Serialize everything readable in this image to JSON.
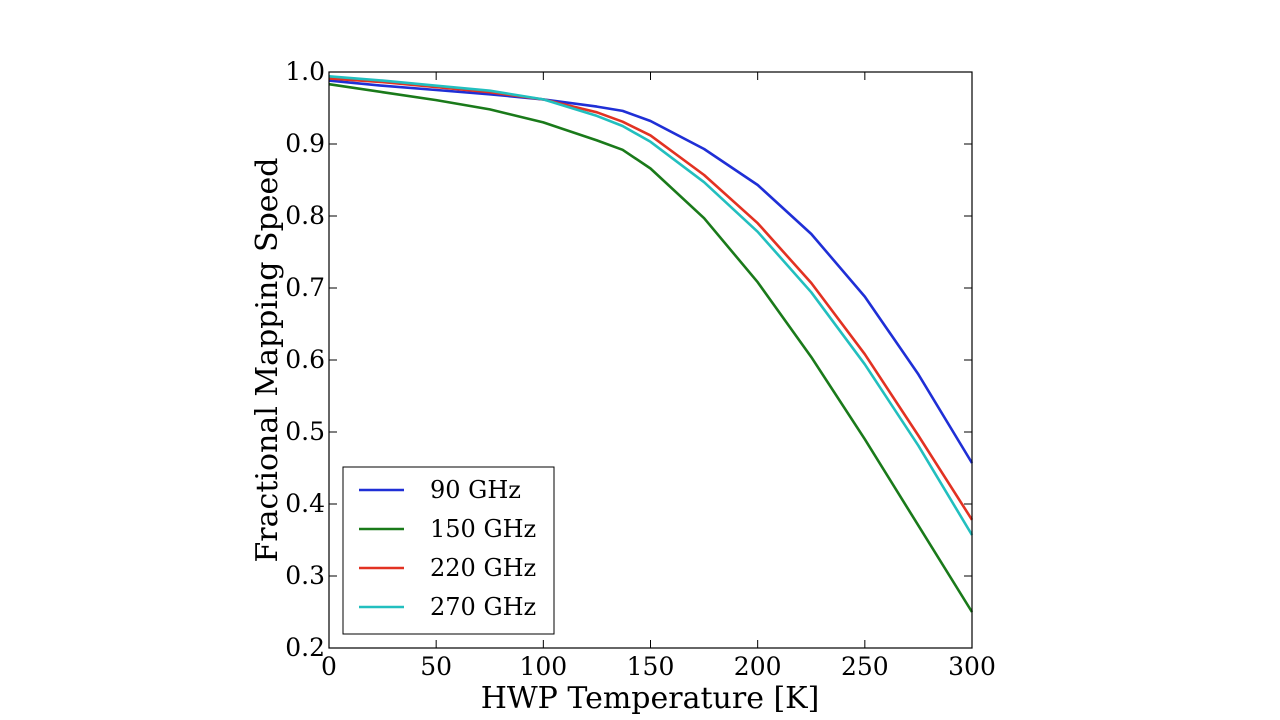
{
  "chart_data": {
    "type": "line",
    "title": "",
    "xlabel": "HWP Temperature [K]",
    "ylabel": "Fractional Mapping Speed",
    "xlim": [
      0,
      300
    ],
    "ylim": [
      0.2,
      1.0
    ],
    "xticks": [
      0,
      50,
      100,
      150,
      200,
      250,
      300
    ],
    "yticks": [
      0.2,
      0.3,
      0.4,
      0.5,
      0.6,
      0.7,
      0.8,
      0.9,
      1.0
    ],
    "xtick_labels": [
      "0",
      "50",
      "100",
      "150",
      "200",
      "250",
      "300"
    ],
    "ytick_labels": [
      "0.2",
      "0.3",
      "0.4",
      "0.5",
      "0.6",
      "0.7",
      "0.8",
      "0.9",
      "1.0"
    ],
    "grid": false,
    "legend_position": "lower-left",
    "series": [
      {
        "name": "90 GHz",
        "color": "#1f2fd6",
        "x": [
          0,
          25,
          50,
          75,
          100,
          125,
          137,
          150,
          175,
          200,
          225,
          250,
          275,
          300
        ],
        "y": [
          0.988,
          0.981,
          0.975,
          0.969,
          0.962,
          0.952,
          0.946,
          0.932,
          0.893,
          0.843,
          0.775,
          0.688,
          0.58,
          0.457
        ]
      },
      {
        "name": "150 GHz",
        "color": "#1a7a1a",
        "x": [
          0,
          25,
          50,
          75,
          100,
          125,
          137,
          150,
          175,
          200,
          225,
          250,
          275,
          300
        ],
        "y": [
          0.983,
          0.972,
          0.961,
          0.948,
          0.93,
          0.905,
          0.892,
          0.866,
          0.797,
          0.708,
          0.604,
          0.49,
          0.37,
          0.25
        ]
      },
      {
        "name": "220 GHz",
        "color": "#e23222",
        "x": [
          0,
          25,
          50,
          75,
          100,
          125,
          137,
          150,
          175,
          200,
          225,
          250,
          275,
          300
        ],
        "y": [
          0.991,
          0.986,
          0.979,
          0.972,
          0.962,
          0.944,
          0.931,
          0.912,
          0.857,
          0.79,
          0.707,
          0.608,
          0.495,
          0.378
        ]
      },
      {
        "name": "270 GHz",
        "color": "#22bfbf",
        "x": [
          0,
          25,
          50,
          75,
          100,
          125,
          137,
          150,
          175,
          200,
          225,
          250,
          275,
          300
        ],
        "y": [
          0.994,
          0.988,
          0.981,
          0.974,
          0.962,
          0.939,
          0.925,
          0.903,
          0.847,
          0.778,
          0.694,
          0.594,
          0.481,
          0.357
        ]
      }
    ]
  }
}
